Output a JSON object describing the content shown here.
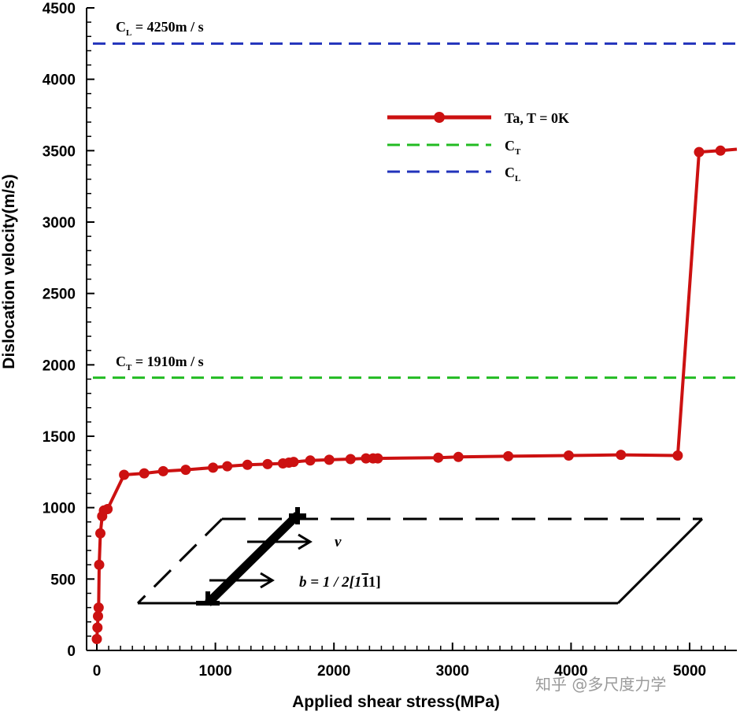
{
  "chart_data": {
    "type": "line",
    "xlabel": "Applied  shear stress(MPa)",
    "ylabel": "Dislocation velocity(m/s)",
    "xlim": [
      -100,
      5400
    ],
    "ylim": [
      0,
      4500
    ],
    "x_ticks": [
      0,
      1000,
      2000,
      3000,
      4000,
      5000
    ],
    "x_tick_labels": [
      "0",
      "1000",
      "2000",
      "3000",
      "4000",
      "5000"
    ],
    "y_ticks": [
      0,
      500,
      1000,
      1500,
      2000,
      2500,
      3000,
      3500,
      4000,
      4500
    ],
    "y_tick_labels": [
      "0",
      "500",
      "1000",
      "1500",
      "2000",
      "2500",
      "3000",
      "3500",
      "4000",
      "4500"
    ],
    "grid": false,
    "legend_position": "top-right",
    "series": [
      {
        "name": "Ta, T = 0K",
        "color": "#cc1111",
        "marker": "circle",
        "x": [
          0,
          5,
          10,
          15,
          20,
          30,
          45,
          60,
          90,
          230,
          400,
          560,
          750,
          980,
          1100,
          1270,
          1440,
          1570,
          1620,
          1660,
          1800,
          1960,
          2140,
          2270,
          2330,
          2370,
          2880,
          3050,
          3470,
          3980,
          4420,
          4900,
          5080,
          5260,
          5400
        ],
        "y": [
          80,
          160,
          240,
          300,
          600,
          820,
          940,
          980,
          990,
          1230,
          1240,
          1255,
          1265,
          1280,
          1290,
          1300,
          1305,
          1310,
          1315,
          1320,
          1330,
          1335,
          1340,
          1345,
          1345,
          1345,
          1350,
          1355,
          1360,
          1365,
          1370,
          1365,
          3490,
          3500,
          3510
        ]
      },
      {
        "name": "C_T",
        "color": "#22bb22",
        "style": "dashed",
        "y_constant": 1910
      },
      {
        "name": "C_L",
        "color": "#2233bb",
        "style": "dashed",
        "y_constant": 4250
      }
    ],
    "annotations": {
      "cl": {
        "symbol": "C",
        "sub": "L",
        "text": " = 4250m / s"
      },
      "ct": {
        "symbol": "C",
        "sub": "T",
        "text": " = 1910m / s"
      },
      "inset_v": "v",
      "inset_b_pre": "b = 1 / 2[1",
      "inset_b_bar": "1",
      "inset_b_post": "1]"
    },
    "legend": [
      {
        "label": "Ta, T = 0K"
      },
      {
        "symbol": "C",
        "sub": "T"
      },
      {
        "symbol": "C",
        "sub": "L"
      }
    ]
  },
  "watermark": "知乎 @多尺度力学",
  "colors": {
    "axis": "#000000",
    "series_red": "#cc1111",
    "ct_green": "#22bb22",
    "cl_blue": "#2233bb",
    "watermark": "#9a9a9a"
  }
}
